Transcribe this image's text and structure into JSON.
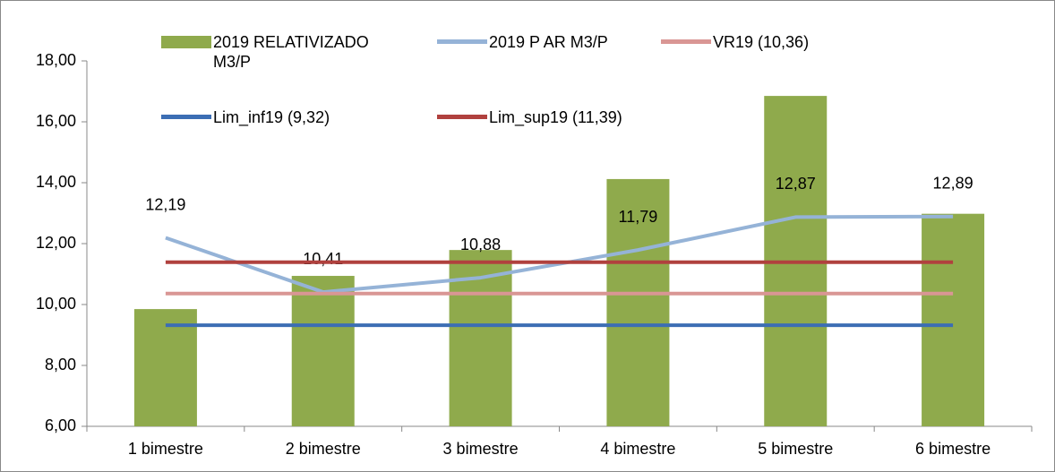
{
  "chart_data": {
    "type": "bar",
    "categories": [
      "1 bimestre",
      "2 bimestre",
      "3 bimestre",
      "4 bimestre",
      "5 bimestre",
      "6 bimestre"
    ],
    "series": [
      {
        "name": "2019 RELATIVIZADO M3/P",
        "type": "bar",
        "color": "#8faa4c",
        "values": [
          9.85,
          10.94,
          11.79,
          14.12,
          16.85,
          12.98
        ]
      },
      {
        "name": "2019 P AR M3/P",
        "type": "line",
        "color": "#95b3d7",
        "values": [
          12.19,
          10.41,
          10.88,
          11.79,
          12.87,
          12.89
        ],
        "value_labels": [
          "12,19",
          "10,41",
          "10,88",
          "11,79",
          "12,87",
          "12,89"
        ]
      },
      {
        "name": "VR19 (10,36)",
        "type": "line",
        "color": "#d99694",
        "values": [
          10.36,
          10.36,
          10.36,
          10.36,
          10.36,
          10.36
        ]
      },
      {
        "name": "Lim_inf19 (9,32)",
        "type": "line",
        "color": "#3c6eb4",
        "values": [
          9.32,
          9.32,
          9.32,
          9.32,
          9.32,
          9.32
        ]
      },
      {
        "name": "Lim_sup19 (11,39)",
        "type": "line",
        "color": "#b0413e",
        "values": [
          11.39,
          11.39,
          11.39,
          11.39,
          11.39,
          11.39
        ]
      }
    ],
    "ylim": [
      6,
      18
    ],
    "yticks": [
      {
        "value": 6,
        "label": "6,00"
      },
      {
        "value": 8,
        "label": "8,00"
      },
      {
        "value": 10,
        "label": "10,00"
      },
      {
        "value": 12,
        "label": "12,00"
      },
      {
        "value": 14,
        "label": "14,00"
      },
      {
        "value": 16,
        "label": "16,00"
      },
      {
        "value": 18,
        "label": "18,00"
      }
    ]
  }
}
